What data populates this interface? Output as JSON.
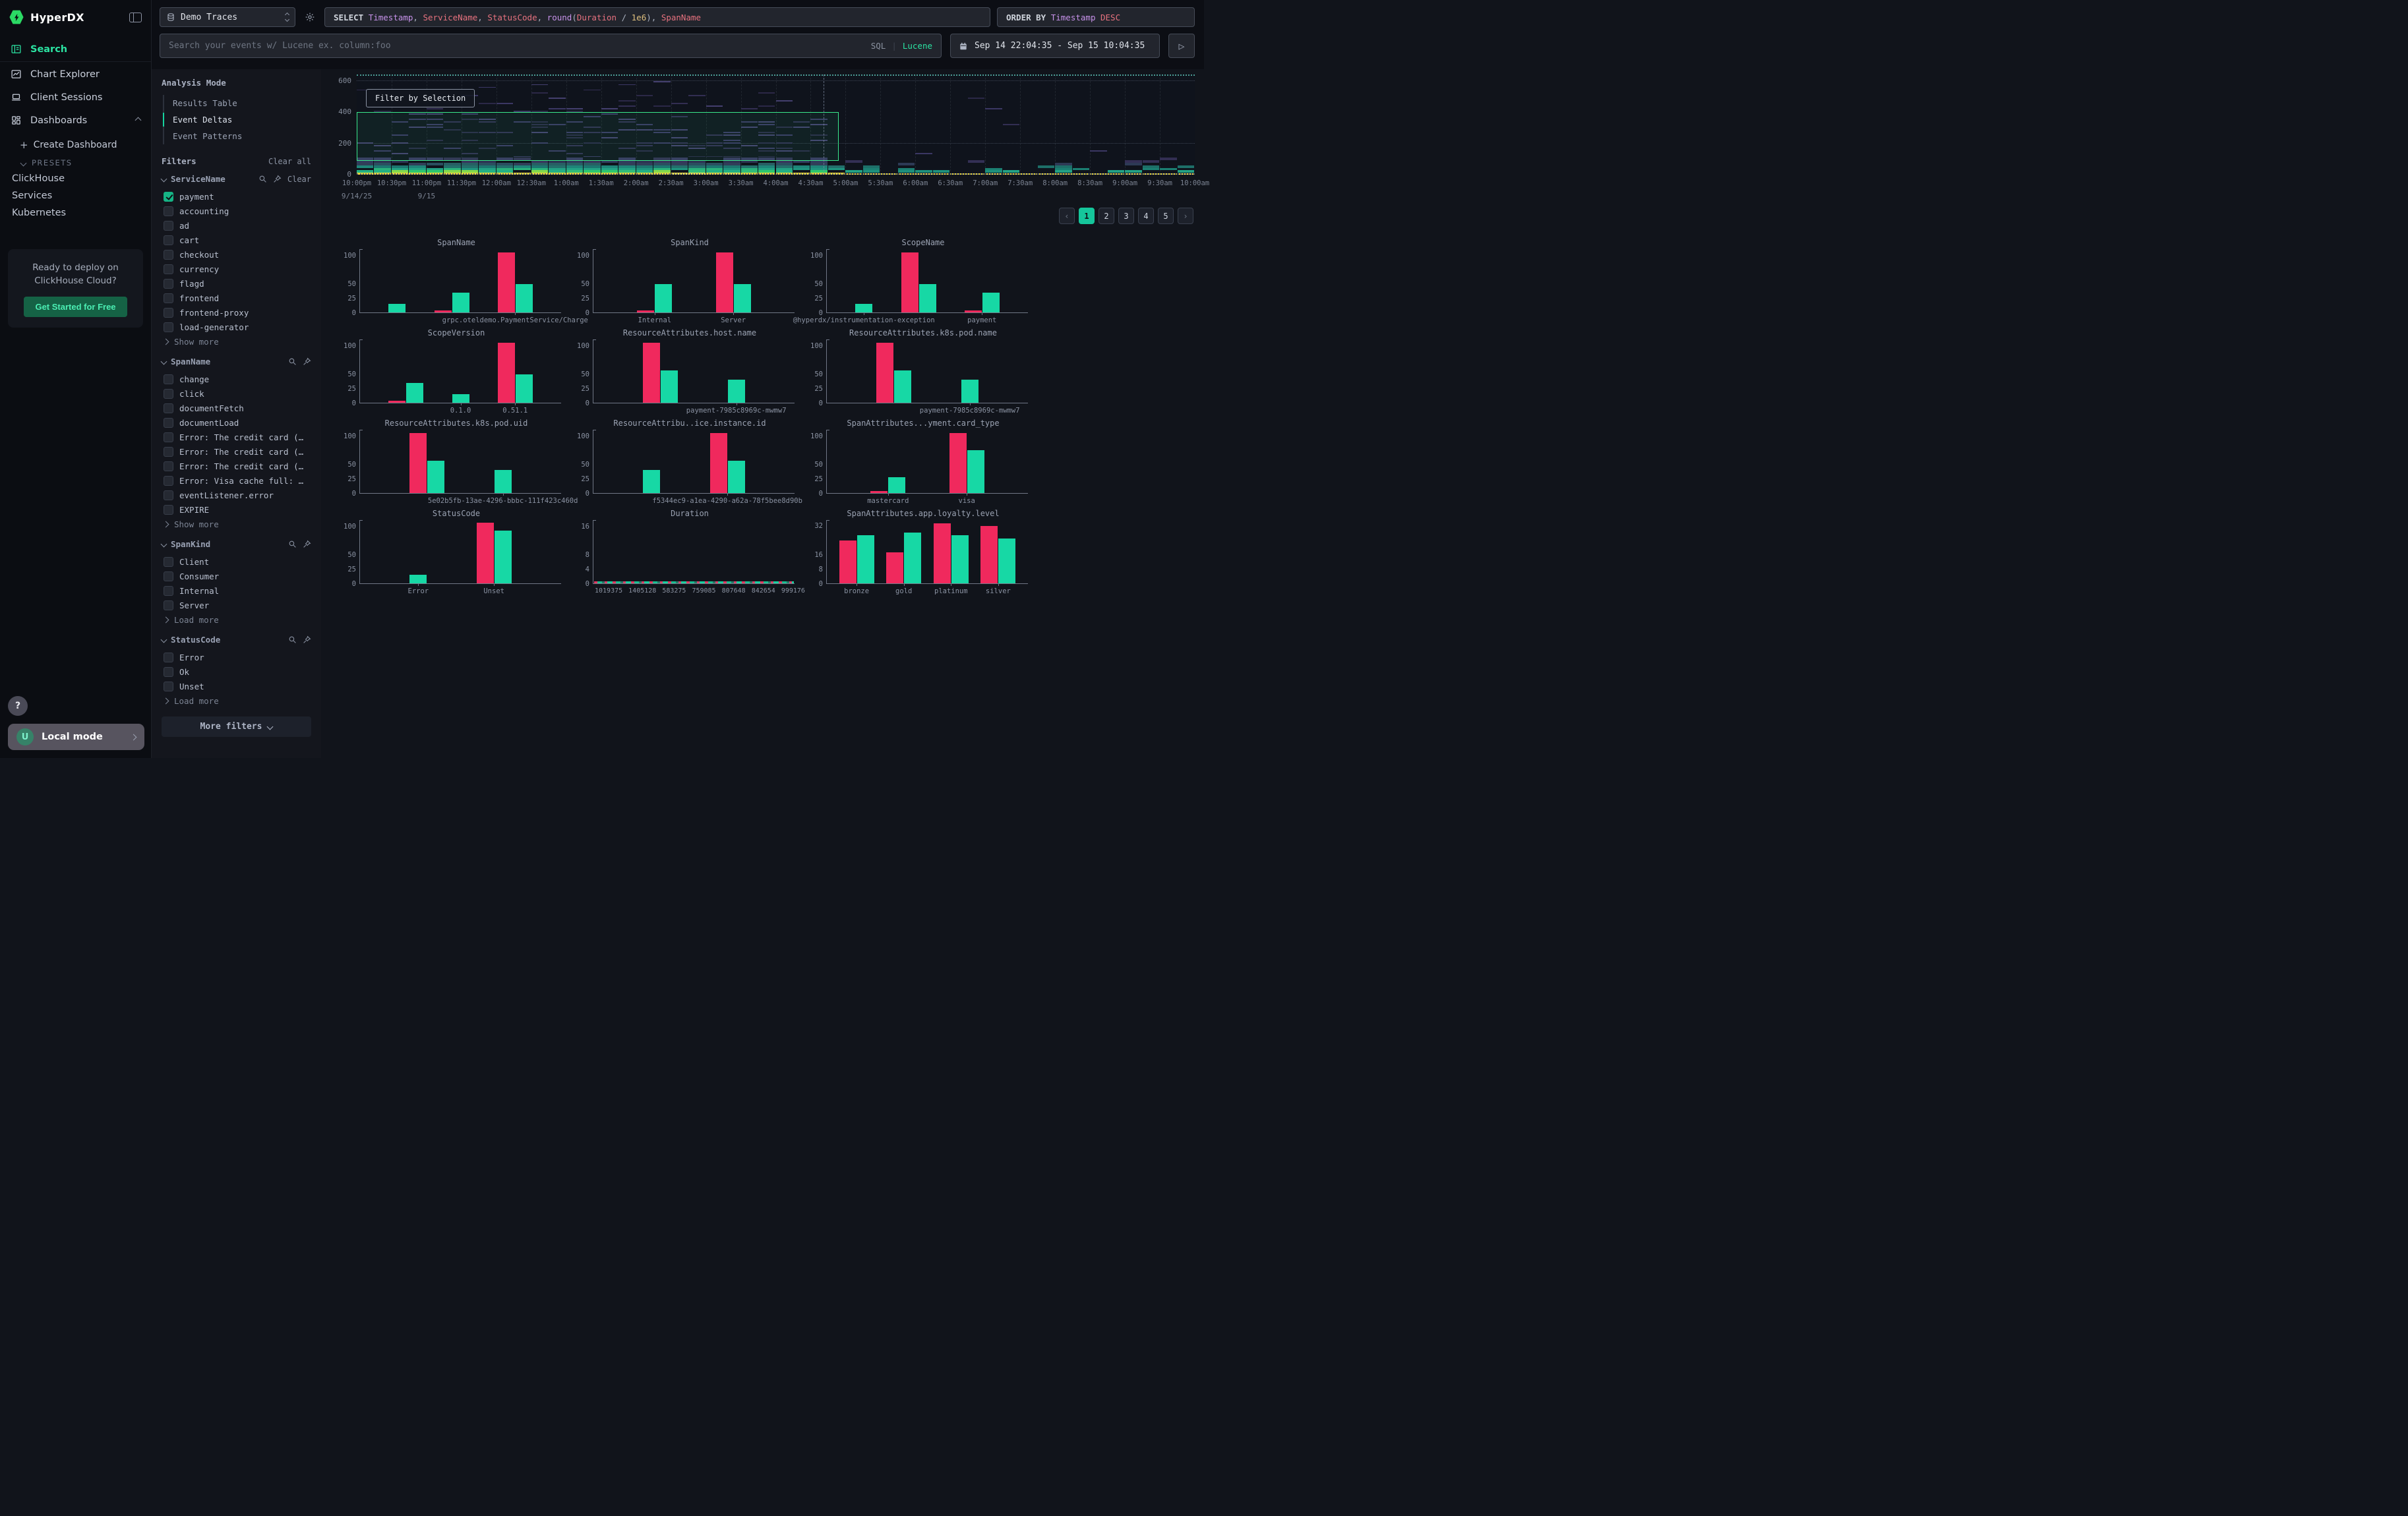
{
  "app": {
    "title": "HyperDX"
  },
  "sidebar": {
    "nav": [
      {
        "label": "Search",
        "active": true
      },
      {
        "label": "Chart Explorer"
      },
      {
        "label": "Client Sessions"
      },
      {
        "label": "Dashboards"
      }
    ],
    "create_dashboard": "Create Dashboard",
    "presets_label": "PRESETS",
    "presets": [
      "ClickHouse",
      "Services",
      "Kubernetes"
    ],
    "promo": {
      "line1": "Ready to deploy on",
      "line2": "ClickHouse Cloud?",
      "cta": "Get Started for Free"
    },
    "help": "?",
    "user_initial": "U",
    "local_mode": "Local mode"
  },
  "topbar": {
    "source": "Demo Traces",
    "query_tokens": [
      {
        "t": "SELECT ",
        "c": "kw"
      },
      {
        "t": "Timestamp",
        "c": "purple"
      },
      {
        "t": ", ",
        "c": "p"
      },
      {
        "t": "ServiceName",
        "c": "red"
      },
      {
        "t": ", ",
        "c": "p"
      },
      {
        "t": "StatusCode",
        "c": "red"
      },
      {
        "t": ", ",
        "c": "p"
      },
      {
        "t": "round",
        "c": "purple"
      },
      {
        "t": "(",
        "c": "p"
      },
      {
        "t": "Duration",
        "c": "red"
      },
      {
        "t": " / ",
        "c": "p"
      },
      {
        "t": "1e6",
        "c": "yellow"
      },
      {
        "t": ")",
        "c": "p"
      },
      {
        "t": ", ",
        "c": "p"
      },
      {
        "t": "SpanName",
        "c": "red"
      }
    ],
    "orderby_tokens": [
      {
        "t": "ORDER BY ",
        "c": "kw"
      },
      {
        "t": "Timestamp",
        "c": "purple"
      },
      {
        "t": " ",
        "c": "p"
      },
      {
        "t": "DESC",
        "c": "red"
      }
    ],
    "search_placeholder": "Search your events w/ Lucene ex. column:foo",
    "lang_sql": "SQL",
    "lang_lucene": "Lucene",
    "date_range": "Sep 14 22:04:35 - Sep 15 10:04:35"
  },
  "analysis_mode": {
    "title": "Analysis Mode",
    "items": [
      {
        "label": "Results Table"
      },
      {
        "label": "Event Deltas",
        "active": true
      },
      {
        "label": "Event Patterns"
      }
    ]
  },
  "filters": {
    "title": "Filters",
    "clear_all": "Clear all",
    "clear": "Clear",
    "more_filters": "More filters",
    "groups": [
      {
        "name": "ServiceName",
        "has_clear": true,
        "more_label": "Show more",
        "items": [
          {
            "label": "payment",
            "checked": true
          },
          {
            "label": "accounting"
          },
          {
            "label": "ad"
          },
          {
            "label": "cart"
          },
          {
            "label": "checkout"
          },
          {
            "label": "currency"
          },
          {
            "label": "flagd"
          },
          {
            "label": "frontend"
          },
          {
            "label": "frontend-proxy"
          },
          {
            "label": "load-generator"
          }
        ]
      },
      {
        "name": "SpanName",
        "has_clear": false,
        "more_label": "Show more",
        "items": [
          {
            "label": "change"
          },
          {
            "label": "click"
          },
          {
            "label": "documentFetch"
          },
          {
            "label": "documentLoad"
          },
          {
            "label": "Error: The credit card (…"
          },
          {
            "label": "Error: The credit card (…"
          },
          {
            "label": "Error: The credit card (…"
          },
          {
            "label": "Error: Visa cache full: …"
          },
          {
            "label": "eventListener.error"
          },
          {
            "label": "EXPIRE"
          }
        ]
      },
      {
        "name": "SpanKind",
        "has_clear": false,
        "more_label": "Load more",
        "items": [
          {
            "label": "Client"
          },
          {
            "label": "Consumer"
          },
          {
            "label": "Internal"
          },
          {
            "label": "Server"
          }
        ]
      },
      {
        "name": "StatusCode",
        "has_clear": false,
        "more_label": "Load more",
        "items": [
          {
            "label": "Error"
          },
          {
            "label": "Ok"
          },
          {
            "label": "Unset"
          }
        ]
      }
    ]
  },
  "heatmap": {
    "filter_button": "Filter by Selection"
  },
  "pagination": {
    "prev": "‹",
    "pages": [
      "1",
      "2",
      "3",
      "4",
      "5"
    ],
    "active": "1",
    "next": "›"
  },
  "colors": {
    "accent_green": "#2be3a2",
    "bar_pink": "#f0295d",
    "bar_green": "#17d8a5",
    "selection_green": "#3ae98c",
    "active_page_green": "#15c69b"
  },
  "chart_data": [
    {
      "id": "event-deltas-heatmap",
      "type": "heatmap",
      "y_ticks": [
        600,
        400,
        200,
        0
      ],
      "y_max": 640,
      "x_ticks": [
        "10:00pm",
        "10:30pm",
        "11:00pm",
        "11:30pm",
        "12:00am",
        "12:30am",
        "1:00am",
        "1:30am",
        "2:00am",
        "2:30am",
        "3:00am",
        "3:30am",
        "4:00am",
        "4:30am",
        "5:00am",
        "5:30am",
        "6:00am",
        "6:30am",
        "7:00am",
        "7:30am",
        "8:00am",
        "8:30am",
        "9:00am",
        "9:30am",
        "10:00am"
      ],
      "date_labels": [
        {
          "label": "9/14/25",
          "at_frac": 0
        },
        {
          "label": "9/15",
          "at_frac": 0.0833
        }
      ],
      "selection": {
        "y_from": 90,
        "y_to": 400,
        "x_from_frac": 0,
        "x_to_frac": 0.575
      },
      "crosshair_frac": 0.557,
      "legend": "duration-vs-time density heatmap; dense yellow/green bands near 0 until ~4:50am, sparse after"
    },
    {
      "id": "SpanName",
      "type": "bar",
      "title": "SpanName",
      "y_ticks": [
        100,
        50,
        25,
        0
      ],
      "y_max": 110,
      "groups": [
        {
          "label": "",
          "bars": [
            {
              "series": "green",
              "value": 15
            }
          ]
        },
        {
          "label": "",
          "bars": [
            {
              "series": "pink",
              "value": 3
            },
            {
              "series": "green",
              "value": 35
            }
          ]
        },
        {
          "label": "grpc.oteldemo.PaymentService/Charge",
          "bars": [
            {
              "series": "pink",
              "value": 105
            },
            {
              "series": "green",
              "value": 50
            }
          ]
        }
      ]
    },
    {
      "id": "SpanKind",
      "type": "bar",
      "title": "SpanKind",
      "y_ticks": [
        100,
        50,
        25,
        0
      ],
      "y_max": 110,
      "groups": [
        {
          "label": "Internal",
          "bars": [
            {
              "series": "pink",
              "value": 3
            },
            {
              "series": "green",
              "value": 50
            }
          ]
        },
        {
          "label": "Server",
          "bars": [
            {
              "series": "pink",
              "value": 105
            },
            {
              "series": "green",
              "value": 50
            }
          ]
        }
      ]
    },
    {
      "id": "ScopeName",
      "type": "bar",
      "title": "ScopeName",
      "y_ticks": [
        100,
        50,
        25,
        0
      ],
      "y_max": 110,
      "groups": [
        {
          "label": "@hyperdx/instrumentation-exception",
          "bars": [
            {
              "series": "green",
              "value": 15
            }
          ]
        },
        {
          "label": "",
          "bars": [
            {
              "series": "pink",
              "value": 105
            },
            {
              "series": "green",
              "value": 50
            }
          ]
        },
        {
          "label": "payment",
          "bars": [
            {
              "series": "pink",
              "value": 3
            },
            {
              "series": "green",
              "value": 35
            }
          ]
        }
      ]
    },
    {
      "id": "ScopeVersion",
      "type": "bar",
      "title": "ScopeVersion",
      "y_ticks": [
        100,
        50,
        25,
        0
      ],
      "y_max": 110,
      "groups": [
        {
          "label": "",
          "bars": [
            {
              "series": "pink",
              "value": 3
            },
            {
              "series": "green",
              "value": 35
            }
          ]
        },
        {
          "label": "0.1.0",
          "bars": [
            {
              "series": "green",
              "value": 15
            }
          ]
        },
        {
          "label": "0.51.1",
          "bars": [
            {
              "series": "pink",
              "value": 105
            },
            {
              "series": "green",
              "value": 50
            }
          ]
        }
      ]
    },
    {
      "id": "host-name",
      "type": "bar",
      "title": "ResourceAttributes.host.name",
      "y_ticks": [
        100,
        50,
        25,
        0
      ],
      "y_max": 110,
      "groups": [
        {
          "label": "",
          "bars": [
            {
              "series": "pink",
              "value": 105
            },
            {
              "series": "green",
              "value": 57
            }
          ]
        },
        {
          "label": "payment-7985c8969c-mwmw7",
          "bars": [
            {
              "series": "green",
              "value": 40
            }
          ]
        }
      ]
    },
    {
      "id": "k8s-pod-name",
      "type": "bar",
      "title": "ResourceAttributes.k8s.pod.name",
      "y_ticks": [
        100,
        50,
        25,
        0
      ],
      "y_max": 110,
      "groups": [
        {
          "label": "",
          "bars": [
            {
              "series": "pink",
              "value": 105
            },
            {
              "series": "green",
              "value": 57
            }
          ]
        },
        {
          "label": "payment-7985c8969c-mwmw7",
          "bars": [
            {
              "series": "green",
              "value": 40
            }
          ]
        }
      ]
    },
    {
      "id": "k8s-pod-uid",
      "type": "bar",
      "title": "ResourceAttributes.k8s.pod.uid",
      "y_ticks": [
        100,
        50,
        25,
        0
      ],
      "y_max": 110,
      "groups": [
        {
          "label": "",
          "bars": [
            {
              "series": "pink",
              "value": 105
            },
            {
              "series": "green",
              "value": 57
            }
          ]
        },
        {
          "label": "5e02b5fb-13ae-4296-bbbc-111f423c460d",
          "bars": [
            {
              "series": "green",
              "value": 40
            }
          ]
        }
      ]
    },
    {
      "id": "service-instance-id",
      "type": "bar",
      "title": "ResourceAttribu..ice.instance.id",
      "y_ticks": [
        100,
        50,
        25,
        0
      ],
      "y_max": 110,
      "groups": [
        {
          "label": "",
          "bars": [
            {
              "series": "green",
              "value": 40
            }
          ]
        },
        {
          "label": "f5344ec9-a1ea-4290-a62a-78f5bee8d90b",
          "bars": [
            {
              "series": "pink",
              "value": 105
            },
            {
              "series": "green",
              "value": 57
            }
          ]
        }
      ]
    },
    {
      "id": "card-type",
      "type": "bar",
      "title": "SpanAttributes...yment.card_type",
      "y_ticks": [
        100,
        50,
        25,
        0
      ],
      "y_max": 110,
      "groups": [
        {
          "label": "mastercard",
          "bars": [
            {
              "series": "pink",
              "value": 3
            },
            {
              "series": "green",
              "value": 28
            }
          ]
        },
        {
          "label": "visa",
          "bars": [
            {
              "series": "pink",
              "value": 105
            },
            {
              "series": "green",
              "value": 75
            }
          ]
        }
      ]
    },
    {
      "id": "StatusCode",
      "type": "bar",
      "title": "StatusCode",
      "y_ticks": [
        100,
        50,
        25,
        0
      ],
      "y_max": 110,
      "groups": [
        {
          "label": "Error",
          "bars": [
            {
              "series": "green",
              "value": 15
            }
          ]
        },
        {
          "label": "Unset",
          "bars": [
            {
              "series": "pink",
              "value": 107
            },
            {
              "series": "green",
              "value": 93
            }
          ]
        }
      ]
    },
    {
      "id": "Duration",
      "type": "strip",
      "title": "Duration",
      "y_ticks": [
        16,
        8,
        4,
        0
      ],
      "y_max": 17.6,
      "x_labels": [
        "1019375",
        "1405128",
        "583275",
        "759085",
        "807648",
        "842654",
        "999176"
      ],
      "note": "all bars near zero height",
      "groups": []
    },
    {
      "id": "loyalty-level",
      "type": "bar",
      "title": "SpanAttributes.app.loyalty.level",
      "y_ticks": [
        32,
        16,
        8,
        0
      ],
      "y_max": 35,
      "groups": [
        {
          "label": "bronze",
          "bars": [
            {
              "series": "pink",
              "value": 24
            },
            {
              "series": "green",
              "value": 27
            }
          ]
        },
        {
          "label": "gold",
          "bars": [
            {
              "series": "pink",
              "value": 17.5
            },
            {
              "series": "green",
              "value": 28.5
            }
          ]
        },
        {
          "label": "platinum",
          "bars": [
            {
              "series": "pink",
              "value": 33.5
            },
            {
              "series": "green",
              "value": 27
            }
          ]
        },
        {
          "label": "silver",
          "bars": [
            {
              "series": "pink",
              "value": 32
            },
            {
              "series": "green",
              "value": 25
            }
          ]
        }
      ]
    }
  ]
}
